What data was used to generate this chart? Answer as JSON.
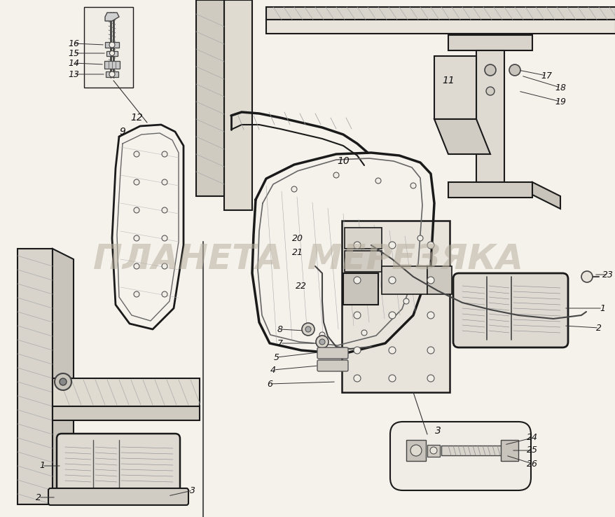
{
  "background_color": "#f0ede6",
  "watermark_text": "ПЛАНЕТА  МЕРЕЗЯКА",
  "watermark_color": "#b8b0a0",
  "watermark_alpha": 0.55,
  "watermark_fontsize": 36,
  "figsize": [
    8.79,
    7.38
  ],
  "dpi": 100,
  "line_color": "#1a1a1a",
  "shade_color": "#888888",
  "light_shade": "#cccccc",
  "bg_paper": "#f5f2ec"
}
